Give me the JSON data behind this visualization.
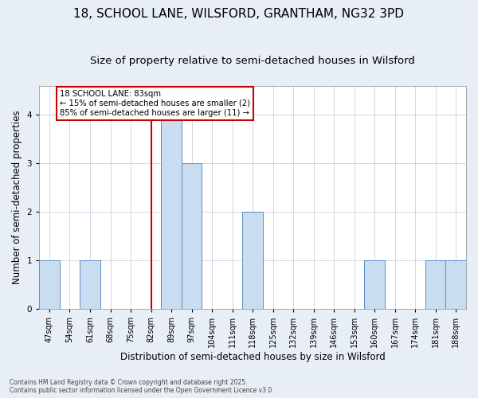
{
  "title_line1": "18, SCHOOL LANE, WILSFORD, GRANTHAM, NG32 3PD",
  "title_line2": "Size of property relative to semi-detached houses in Wilsford",
  "xlabel": "Distribution of semi-detached houses by size in Wilsford",
  "ylabel": "Number of semi-detached properties",
  "categories": [
    "47sqm",
    "54sqm",
    "61sqm",
    "68sqm",
    "75sqm",
    "82sqm",
    "89sqm",
    "97sqm",
    "104sqm",
    "111sqm",
    "118sqm",
    "125sqm",
    "132sqm",
    "139sqm",
    "146sqm",
    "153sqm",
    "160sqm",
    "167sqm",
    "174sqm",
    "181sqm",
    "188sqm"
  ],
  "values": [
    1,
    0,
    1,
    0,
    0,
    0,
    4,
    3,
    0,
    0,
    2,
    0,
    0,
    0,
    0,
    0,
    1,
    0,
    0,
    1,
    1
  ],
  "bar_color": "#c9ddf0",
  "bar_edge_color": "#5b8ec4",
  "subject_line_color": "#cc0000",
  "annotation_text": "18 SCHOOL LANE: 83sqm\n← 15% of semi-detached houses are smaller (2)\n85% of semi-detached houses are larger (11) →",
  "annotation_box_color": "#cc0000",
  "ylim": [
    0,
    4.6
  ],
  "yticks": [
    0,
    1,
    2,
    3,
    4
  ],
  "footer_text": "Contains HM Land Registry data © Crown copyright and database right 2025.\nContains public sector information licensed under the Open Government Licence v3.0.",
  "background_color": "#e8eef5",
  "plot_background_color": "#ffffff",
  "title_fontsize": 11,
  "subtitle_fontsize": 9.5,
  "tick_fontsize": 7,
  "label_fontsize": 8.5
}
